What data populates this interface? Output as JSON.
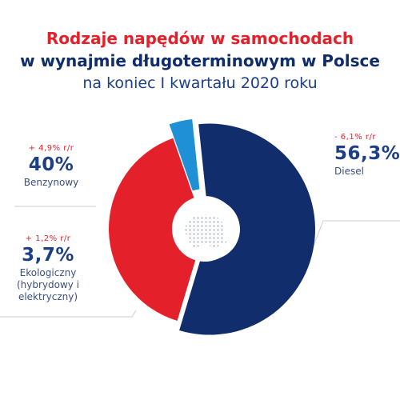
{
  "title": {
    "line1": "Rodzaje napędów w samochodach",
    "line2": "w wynajmie długoterminowym w Polsce",
    "line3": "na koniec I kwartału 2020 roku"
  },
  "colors": {
    "diesel": "#122d6c",
    "benzynowy": "#e4202a",
    "ekologiczny": "#1f8fd6",
    "title_red": "#e4202a",
    "title_navy": "#0f2c6b",
    "leader": "#c9ced8"
  },
  "labels": {
    "benzynowy": {
      "change": "+ 4,9% r/r",
      "value": "40%",
      "name": "Benzynowy"
    },
    "ekologiczny": {
      "change": "+ 1,2% r/r",
      "value": "3,7%",
      "name_lines": [
        "Ekologiczny",
        "(hybrydowy i",
        "elektryczny)"
      ]
    },
    "diesel": {
      "change": "- 6,1% r/r",
      "value": "56,3%",
      "name": "Diesel"
    }
  },
  "chart_data": {
    "type": "pie",
    "title": "Rodzaje napędów w samochodach w wynajmie długoterminowym w Polsce na koniec I kwartału 2020 roku",
    "categories": [
      "Diesel",
      "Benzynowy",
      "Ekologiczny (hybrydowy i elektryczny)"
    ],
    "values": [
      56.3,
      40.0,
      3.7
    ],
    "changes_yoy": [
      "- 6,1% r/r",
      "+ 4,9% r/r",
      "+ 1,2% r/r"
    ],
    "colors": [
      "#122d6c",
      "#e4202a",
      "#1f8fd6"
    ],
    "donut": true,
    "exploded": [
      "Diesel",
      "Ekologiczny (hybrydowy i elektryczny)"
    ]
  }
}
